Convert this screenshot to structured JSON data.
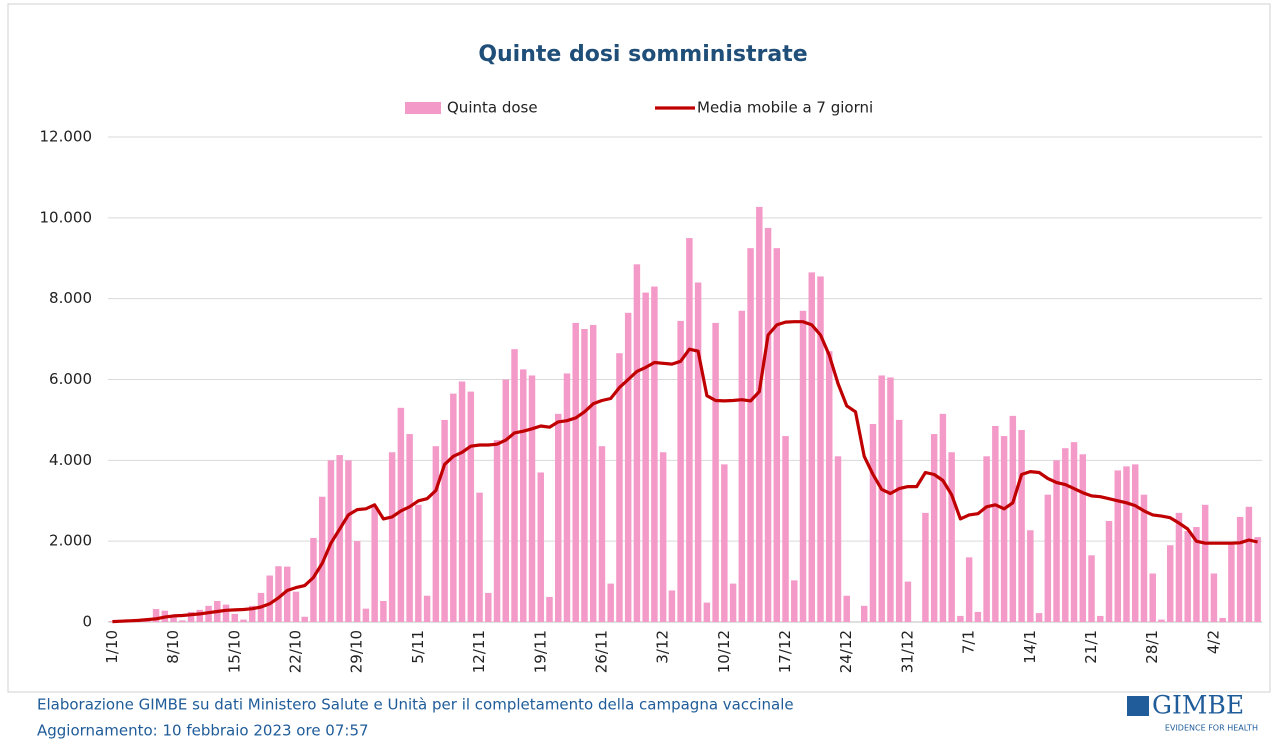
{
  "chart_data": {
    "type": "bar+line",
    "title": "Quinte dosi somministrate",
    "categories": [
      "1/10",
      null,
      null,
      null,
      null,
      null,
      null,
      "8/10",
      null,
      null,
      null,
      null,
      null,
      null,
      "15/10",
      null,
      null,
      null,
      null,
      null,
      null,
      "22/10",
      null,
      null,
      null,
      null,
      null,
      null,
      "29/10",
      null,
      null,
      null,
      null,
      null,
      null,
      "5/11",
      null,
      null,
      null,
      null,
      null,
      null,
      "12/11",
      null,
      null,
      null,
      null,
      null,
      null,
      "19/11",
      null,
      null,
      null,
      null,
      null,
      null,
      "26/11",
      null,
      null,
      null,
      null,
      null,
      null,
      "3/12",
      null,
      null,
      null,
      null,
      null,
      null,
      "10/12",
      null,
      null,
      null,
      null,
      null,
      null,
      "17/12",
      null,
      null,
      null,
      null,
      null,
      null,
      "24/12",
      null,
      null,
      null,
      null,
      null,
      null,
      "31/12",
      null,
      null,
      null,
      null,
      null,
      null,
      "7/1",
      null,
      null,
      null,
      null,
      null,
      null,
      "14/1",
      null,
      null,
      null,
      null,
      null,
      null,
      "21/1",
      null,
      null,
      null,
      null,
      null,
      null,
      "28/1",
      null,
      null,
      null,
      null,
      null,
      null,
      "4/2",
      null,
      null,
      null,
      null,
      null
    ],
    "series": [
      {
        "name": "Quinta dose",
        "kind": "bar",
        "color": "#f49ac8",
        "values": [
          20,
          10,
          30,
          40,
          60,
          320,
          280,
          150,
          40,
          250,
          300,
          400,
          520,
          430,
          200,
          60,
          400,
          720,
          1150,
          1380,
          1370,
          750,
          130,
          2080,
          3100,
          4000,
          4130,
          4000,
          2000,
          330,
          2850,
          520,
          4200,
          5300,
          4650,
          2900,
          650,
          4350,
          5000,
          5650,
          5950,
          5700,
          3200,
          720,
          4500,
          6000,
          6750,
          6250,
          6100,
          3700,
          620,
          5150,
          6150,
          7400,
          7250,
          7350,
          4350,
          950,
          6650,
          7650,
          8850,
          8150,
          8300,
          4200,
          780,
          7450,
          9500,
          8400,
          480,
          7400,
          3900,
          950,
          7700,
          9250,
          10270,
          9750,
          9250,
          4600,
          1030,
          7700,
          8650,
          8550,
          6700,
          4100,
          650,
          0,
          400,
          4900,
          6100,
          6050,
          5000,
          1000,
          0,
          2700,
          4650,
          5150,
          4200,
          150,
          1600,
          250,
          4100,
          4850,
          4600,
          5100,
          4750,
          2270,
          220,
          3150,
          4000,
          4300,
          4450,
          4150,
          1650,
          150,
          2500,
          3750,
          3850,
          3900,
          3150,
          1200,
          60,
          1900,
          2700,
          2250,
          2350,
          2900,
          1200,
          100,
          1950,
          2600,
          2850,
          2100
        ]
      },
      {
        "name": "Media mobile a 7 giorni",
        "kind": "line",
        "color": "#c00000",
        "values": [
          10,
          20,
          30,
          40,
          60,
          80,
          120,
          150,
          160,
          180,
          200,
          230,
          260,
          290,
          300,
          310,
          330,
          370,
          450,
          600,
          780,
          850,
          900,
          1100,
          1450,
          1950,
          2300,
          2650,
          2780,
          2800,
          2900,
          2550,
          2600,
          2750,
          2850,
          3000,
          3050,
          3250,
          3900,
          4100,
          4200,
          4350,
          4380,
          4380,
          4400,
          4500,
          4680,
          4720,
          4780,
          4850,
          4820,
          4950,
          4980,
          5050,
          5200,
          5400,
          5480,
          5530,
          5800,
          6000,
          6200,
          6300,
          6420,
          6400,
          6380,
          6450,
          6750,
          6700,
          5600,
          5480,
          5470,
          5480,
          5500,
          5470,
          5700,
          7100,
          7350,
          7420,
          7430,
          7430,
          7350,
          7100,
          6600,
          5900,
          5350,
          5200,
          4100,
          3650,
          3280,
          3180,
          3300,
          3350,
          3350,
          3700,
          3650,
          3500,
          3150,
          2550,
          2650,
          2680,
          2850,
          2900,
          2800,
          2950,
          3650,
          3720,
          3700,
          3550,
          3450,
          3400,
          3300,
          3200,
          3120,
          3100,
          3050,
          3000,
          2950,
          2880,
          2750,
          2650,
          2620,
          2580,
          2450,
          2300,
          2000,
          1950,
          1950,
          1950,
          1950,
          1960,
          2030,
          1980
        ]
      }
    ],
    "ylim": [
      0,
      12000
    ],
    "yticks": [
      0,
      {
        "value": 2000,
        "label": "2.000"
      },
      {
        "value": 4000,
        "label": "4.000"
      },
      {
        "value": 6000,
        "label": "6.000"
      },
      {
        "value": 8000,
        "label": "8.000"
      },
      {
        "value": 10000,
        "label": "10.000"
      },
      {
        "value": 12000,
        "label": "12.000"
      }
    ],
    "grid": true,
    "legend": "top"
  },
  "footer": {
    "source": "Elaborazione GIMBE su dati Ministero Salute e Unità per il completamento della campagna vaccinale",
    "updated": "Aggiornamento: 10 febbraio 2023 ore 07:57"
  },
  "logo": {
    "name": "GIMBE",
    "tagline": "EVIDENCE FOR HEALTH"
  }
}
